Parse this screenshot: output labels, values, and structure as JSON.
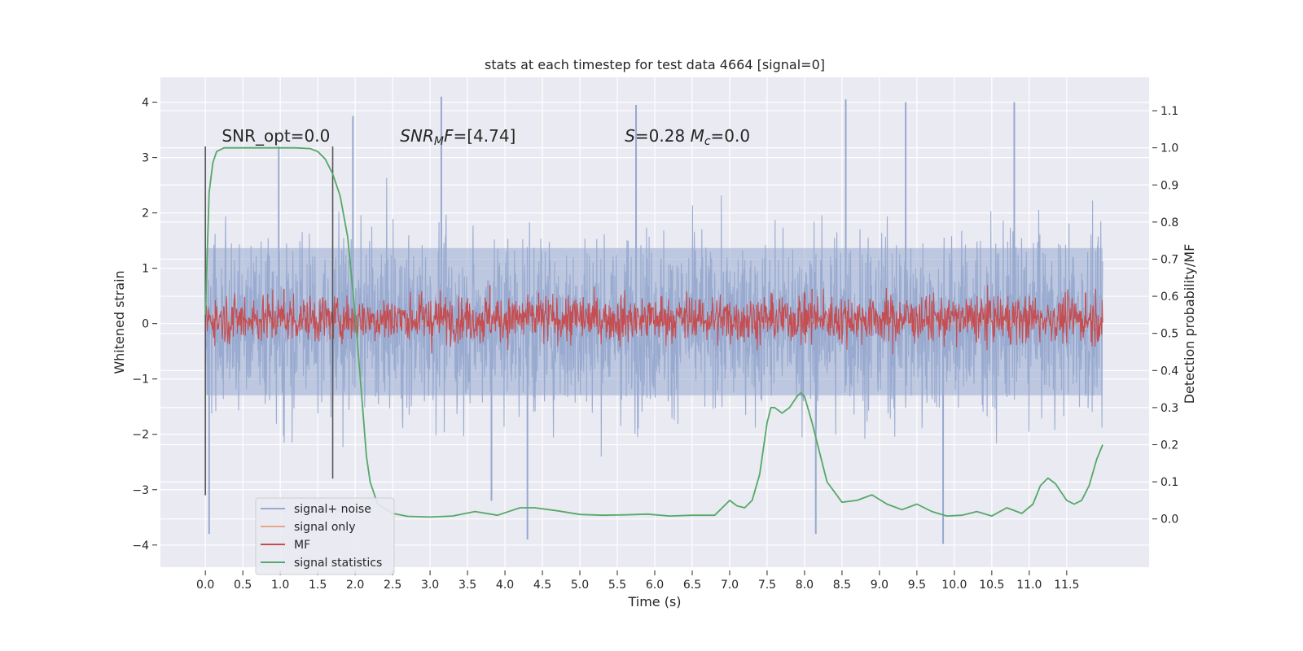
{
  "chart_data": {
    "type": "line",
    "title": "stats at each timestep for test data 4664 [signal=0]",
    "xlabel": "Time (s)",
    "ylabel_left": "Whitened strain",
    "ylabel_right": "Detection probability/MF",
    "xlim": [
      -0.6,
      12.6
    ],
    "ylim_left": [
      -4.4,
      4.45
    ],
    "ylim_right": [
      -0.13,
      1.19
    ],
    "x_ticks": [
      0.0,
      0.5,
      1.0,
      1.5,
      2.0,
      2.5,
      3.0,
      3.5,
      4.0,
      4.5,
      5.0,
      5.5,
      6.0,
      6.5,
      7.0,
      7.5,
      8.0,
      8.5,
      9.0,
      9.5,
      10.0,
      10.5,
      11.0,
      11.5
    ],
    "x_tick_labels": [
      "0.0",
      "0.5",
      "1.0",
      "1.5",
      "2.0",
      "2.5",
      "3.0",
      "3.5",
      "4.0",
      "4.5",
      "5.0",
      "5.5",
      "6.0",
      "6.5",
      "7.0",
      "7.5",
      "8.0",
      "8.5",
      "9.0",
      "9.5",
      "10.0",
      "10.5",
      "11.0",
      "11.5"
    ],
    "y_left_ticks": [
      4,
      3,
      2,
      1,
      0,
      -1,
      -2,
      -3,
      -4
    ],
    "y_left_tick_labels": [
      "4",
      "3",
      "2",
      "1",
      "0",
      "−1",
      "−2",
      "−3",
      "−4"
    ],
    "y_right_ticks": [
      1.1,
      1.0,
      0.9,
      0.8,
      0.7,
      0.6,
      0.5,
      0.4,
      0.3,
      0.2,
      0.1,
      0.0
    ],
    "y_right_tick_labels": [
      "1.1",
      "1.0",
      "0.9",
      "0.8",
      "0.7",
      "0.6",
      "0.5",
      "0.4",
      "0.3",
      "0.2",
      "0.1",
      "0.0"
    ],
    "grid": true,
    "legend_position": "lower-left",
    "colors": {
      "background": "#eaeaf2",
      "grid": "#ffffff",
      "noise": "#97a9cf",
      "signal_only": "#e8a68c",
      "mf": "#c44e52",
      "stats": "#55a868",
      "marker": "#555555"
    },
    "series": [
      {
        "name": "signal+ noise",
        "axis": "left",
        "style": "dense noise band",
        "x_range": [
          0.0,
          11.98
        ],
        "core_band": [
          -1.85,
          1.95
        ],
        "peaks": [
          {
            "x": 0.05,
            "y": -3.8
          },
          {
            "x": 0.98,
            "y": 3.2
          },
          {
            "x": 1.97,
            "y": 3.75
          },
          {
            "x": 3.15,
            "y": 4.1
          },
          {
            "x": 4.3,
            "y": -3.9
          },
          {
            "x": 5.75,
            "y": 3.95
          },
          {
            "x": 8.55,
            "y": 4.05
          },
          {
            "x": 9.35,
            "y": 4.0
          },
          {
            "x": 9.85,
            "y": -3.98
          },
          {
            "x": 10.8,
            "y": 4.0
          },
          {
            "x": 8.15,
            "y": -3.8
          },
          {
            "x": 3.82,
            "y": -3.2
          }
        ]
      },
      {
        "name": "signal only",
        "axis": "left",
        "x": [
          0.0,
          11.98
        ],
        "y": [
          0.0,
          0.0
        ]
      },
      {
        "name": "MF",
        "axis": "right",
        "style": "dense noise band",
        "x_range": [
          0.0,
          11.98
        ],
        "band": [
          0.5,
          0.58
        ],
        "peaks": [
          {
            "x": 1.05,
            "y": 0.62
          },
          {
            "x": 3.8,
            "y": 0.63
          },
          {
            "x": 4.45,
            "y": 0.61
          },
          {
            "x": 8.1,
            "y": 0.62
          },
          {
            "x": 11.75,
            "y": 0.61
          }
        ]
      },
      {
        "name": "signal statistics",
        "axis": "right",
        "x": [
          0.0,
          0.05,
          0.1,
          0.15,
          0.25,
          0.4,
          0.6,
          0.8,
          1.0,
          1.2,
          1.4,
          1.5,
          1.6,
          1.7,
          1.8,
          1.9,
          2.0,
          2.1,
          2.15,
          2.2,
          2.3,
          2.5,
          2.7,
          3.0,
          3.3,
          3.6,
          3.9,
          4.2,
          4.4,
          4.7,
          5.0,
          5.3,
          5.6,
          5.9,
          6.2,
          6.5,
          6.8,
          6.95,
          7.0,
          7.1,
          7.2,
          7.3,
          7.4,
          7.5,
          7.55,
          7.6,
          7.7,
          7.8,
          7.9,
          7.95,
          8.0,
          8.1,
          8.2,
          8.3,
          8.5,
          8.7,
          8.9,
          9.1,
          9.3,
          9.5,
          9.7,
          9.9,
          10.1,
          10.3,
          10.5,
          10.7,
          10.9,
          11.05,
          11.15,
          11.25,
          11.35,
          11.5,
          11.6,
          11.7,
          11.8,
          11.9,
          11.98
        ],
        "y": [
          0.55,
          0.88,
          0.96,
          0.99,
          1.0,
          1.0,
          1.0,
          1.0,
          1.0,
          1.0,
          0.998,
          0.99,
          0.97,
          0.93,
          0.87,
          0.76,
          0.55,
          0.3,
          0.17,
          0.1,
          0.04,
          0.015,
          0.007,
          0.005,
          0.008,
          0.02,
          0.01,
          0.03,
          0.03,
          0.022,
          0.012,
          0.01,
          0.011,
          0.013,
          0.008,
          0.01,
          0.01,
          0.04,
          0.05,
          0.035,
          0.03,
          0.05,
          0.12,
          0.26,
          0.3,
          0.3,
          0.285,
          0.3,
          0.33,
          0.34,
          0.33,
          0.26,
          0.18,
          0.1,
          0.045,
          0.05,
          0.065,
          0.04,
          0.025,
          0.04,
          0.02,
          0.008,
          0.01,
          0.02,
          0.008,
          0.03,
          0.015,
          0.04,
          0.09,
          0.11,
          0.095,
          0.05,
          0.04,
          0.05,
          0.09,
          0.16,
          0.2
        ]
      }
    ],
    "vertical_lines": [
      {
        "x": 0.0,
        "y_range": [
          -3.1,
          3.2
        ]
      },
      {
        "x": 1.7,
        "y_range": [
          -2.8,
          3.2
        ]
      }
    ],
    "annotations": [
      {
        "id": "snr_opt",
        "x": 0.22,
        "y": 3.2,
        "parts": [
          {
            "t": "SNR_opt=0.0"
          }
        ]
      },
      {
        "id": "snr_mf",
        "x": 2.6,
        "y": 3.2,
        "parts": [
          {
            "t": "SNR",
            "i": true
          },
          {
            "t": "M",
            "i": true,
            "sub": true
          },
          {
            "t": "F",
            "i": true
          },
          {
            "t": "=[4.74]"
          }
        ]
      },
      {
        "id": "s_mc",
        "x": 5.6,
        "y": 3.2,
        "parts": [
          {
            "t": "S",
            "i": true
          },
          {
            "t": "=0.28   "
          },
          {
            "t": "M",
            "i": true
          },
          {
            "t": "c",
            "i": true,
            "sub": true
          },
          {
            "t": "=0.0"
          }
        ]
      }
    ]
  }
}
